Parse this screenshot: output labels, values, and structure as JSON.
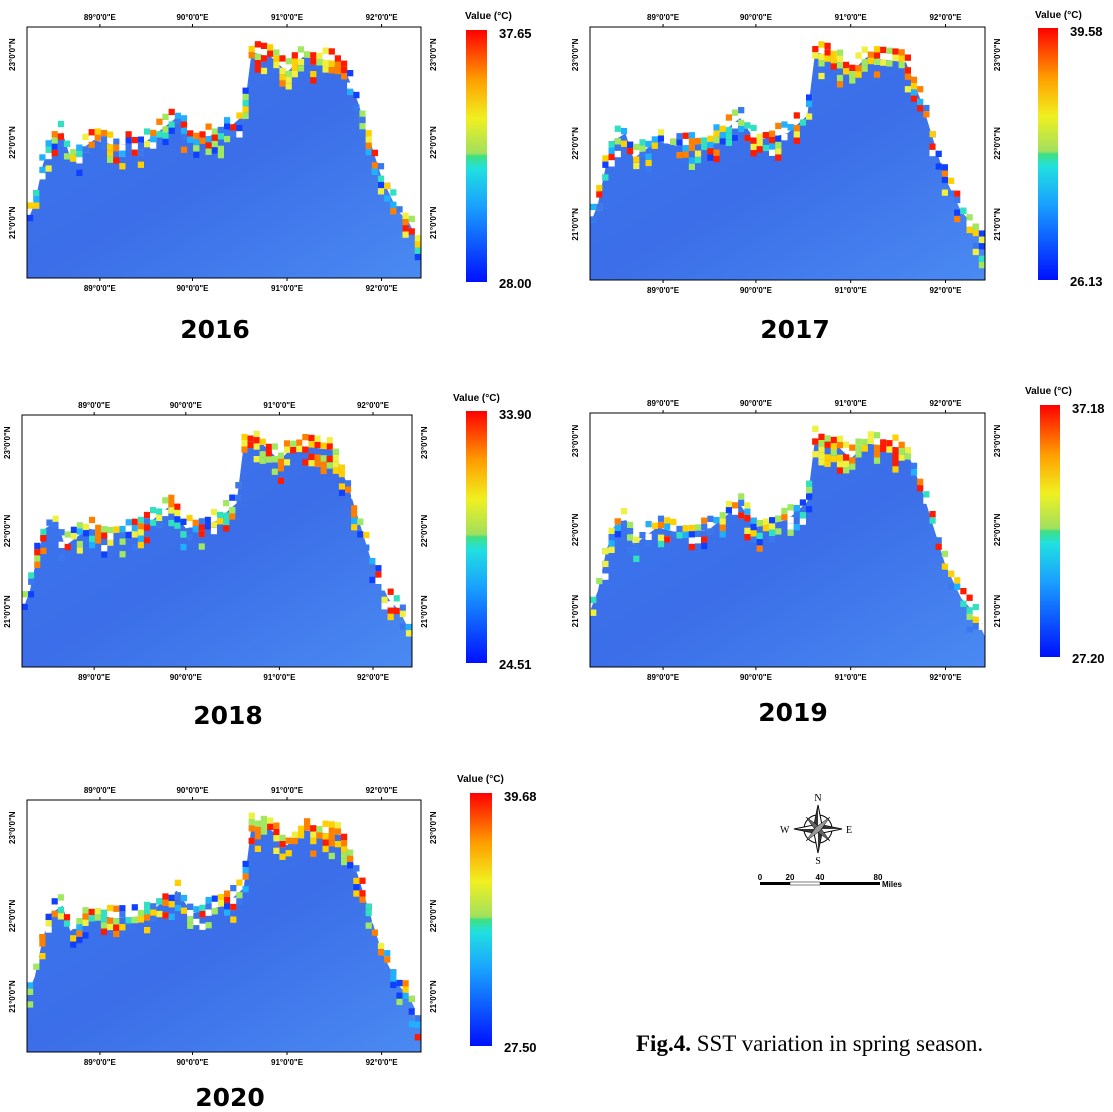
{
  "panels": [
    {
      "year": "2016",
      "legend_title": "Value (°C)",
      "max": "37.65",
      "min": "28.00",
      "lon_top": [
        "89°0'0\"E",
        "90°0'0\"E",
        "91°0'0\"E",
        "92°0'0\"E"
      ],
      "lon_bottom": [
        "89°0'0\"E",
        "90°0'0\"E",
        "91°0'0\"E",
        "92°0'0\"E"
      ],
      "lat_left": [
        "23°0'0\"N",
        "22°0'0\"N",
        "21°0'0\"N"
      ],
      "lat_right": [
        "23°0'0\"N",
        "22°0'0\"N",
        "21°0'0\"N"
      ]
    },
    {
      "year": "2017",
      "legend_title": "Value (°C)",
      "max": "39.58",
      "min": "26.13",
      "lon_top": [
        "89°0'0\"E",
        "90°0'0\"E",
        "91°0'0\"E",
        "92°0'0\"E"
      ],
      "lon_bottom": [
        "89°0'0\"E",
        "90°0'0\"E",
        "91°0'0\"E",
        "92°0'0\"E"
      ],
      "lat_left": [
        "23°0'0\"N",
        "22°0'0\"N",
        "21°0'0\"N"
      ],
      "lat_right": [
        "23°0'0\"N",
        "22°0'0\"N",
        "21°0'0\"N"
      ]
    },
    {
      "year": "2018",
      "legend_title": "Value (°C)",
      "max": "33.90",
      "min": "24.51",
      "lon_top": [
        "89°0'0\"E",
        "90°0'0\"E",
        "91°0'0\"E",
        "92°0'0\"E"
      ],
      "lon_bottom": [
        "89°0'0\"E",
        "90°0'0\"E",
        "91°0'0\"E",
        "92°0'0\"E"
      ],
      "lat_left": [
        "23°0'0\"N",
        "22°0'0\"N",
        "21°0'0\"N"
      ],
      "lat_right": [
        "23°0'0\"N",
        "22°0'0\"N",
        "21°0'0\"N"
      ]
    },
    {
      "year": "2019",
      "legend_title": "Value (°C)",
      "max": "37.18",
      "min": "27.20",
      "lon_top": [
        "89°0'0\"E",
        "90°0'0\"E",
        "91°0'0\"E",
        "92°0'0\"E"
      ],
      "lon_bottom": [
        "89°0'0\"E",
        "90°0'0\"E",
        "91°0'0\"E",
        "92°0'0\"E"
      ],
      "lat_left": [
        "23°0'0\"N",
        "22°0'0\"N",
        "21°0'0\"N"
      ],
      "lat_right": [
        "23°0'0\"N",
        "22°0'0\"N",
        "21°0'0\"N"
      ]
    },
    {
      "year": "2020",
      "legend_title": "Value (°C)",
      "max": "39.68",
      "min": "27.50",
      "lon_top": [
        "89°0'0\"E",
        "90°0'0\"E",
        "91°0'0\"E",
        "92°0'0\"E"
      ],
      "lon_bottom": [
        "89°0'0\"E",
        "90°0'0\"E",
        "91°0'0\"E",
        "92°0'0\"E"
      ],
      "lat_left": [
        "23°0'0\"N",
        "22°0'0\"N",
        "21°0'0\"N"
      ],
      "lat_right": [
        "23°0'0\"N",
        "22°0'0\"N",
        "21°0'0\"N"
      ]
    }
  ],
  "compass": {
    "n": "N",
    "s": "S",
    "e": "E",
    "w": "W"
  },
  "scale_bar": {
    "ticks": [
      "0",
      "20",
      "40",
      "80"
    ],
    "unit": "Miles"
  },
  "caption": {
    "label": "Fig.4.",
    "text": "SST variation in spring season."
  }
}
